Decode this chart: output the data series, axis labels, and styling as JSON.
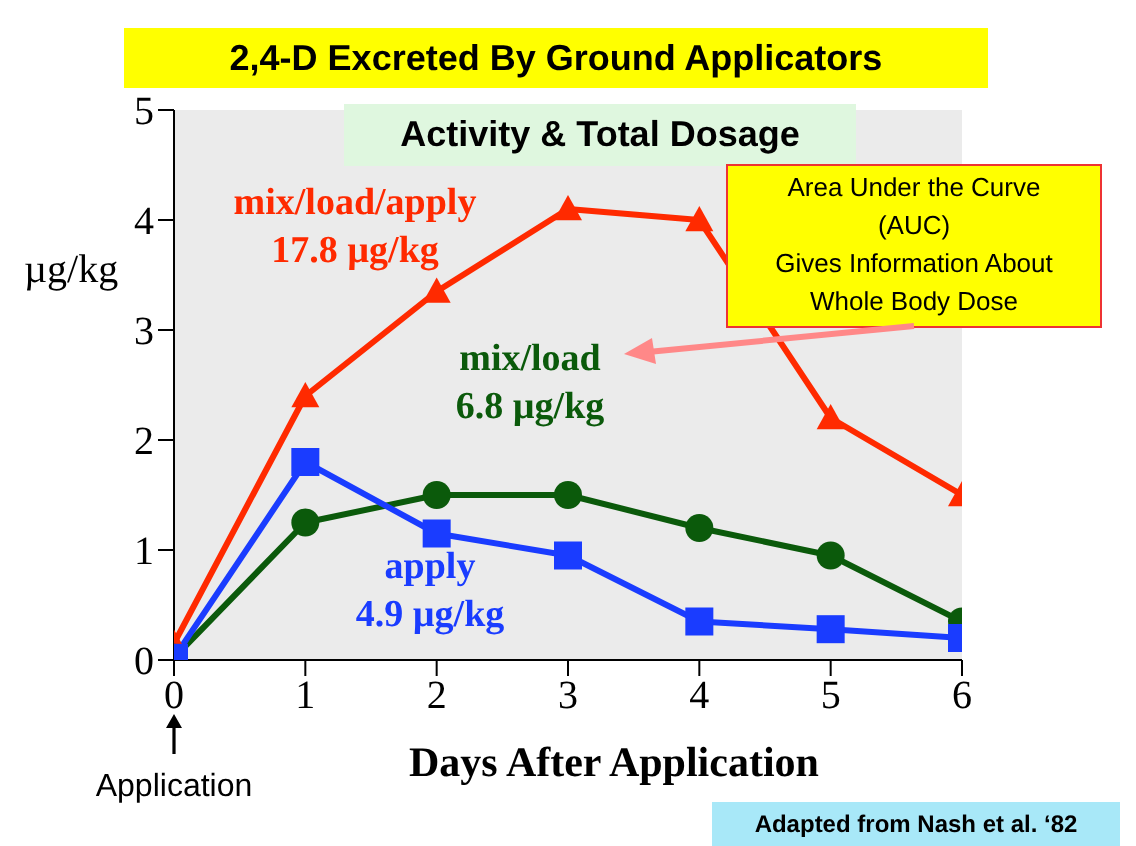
{
  "chart_data": {
    "type": "line",
    "title": "2,4-D Excreted By Ground Applicators",
    "subtitle": "Activity & Total Dosage",
    "xlabel": "Days After Application",
    "ylabel": "µg/kg",
    "x": [
      0,
      1,
      2,
      3,
      4,
      5,
      6
    ],
    "series": [
      {
        "name": "mix/load/apply",
        "color": "#ff2a00",
        "marker": "triangle",
        "values": [
          0.15,
          2.4,
          3.35,
          4.1,
          4.0,
          2.2,
          1.5
        ]
      },
      {
        "name": "mix/load",
        "color": "#0b5a0b",
        "marker": "circle",
        "values": [
          0.02,
          1.25,
          1.5,
          1.5,
          1.2,
          0.95,
          0.35
        ]
      },
      {
        "name": "apply",
        "color": "#1a3cff",
        "marker": "square",
        "values": [
          0.02,
          1.8,
          1.15,
          0.95,
          0.35,
          0.28,
          0.2
        ]
      }
    ],
    "annotations": [
      "17.8 µg/kg",
      "6.8 µg/kg",
      "4.9 µg/kg",
      "Area Under the Curve\n(AUC)\nGives Information About\nWhole Body Dose",
      "Application",
      "Adapted from Nash et al. ‘82"
    ],
    "xlim": [
      0,
      6
    ],
    "ylim": [
      0,
      5
    ],
    "xticks": [
      0,
      1,
      2,
      3,
      4,
      5,
      6
    ],
    "yticks": [
      0,
      1,
      2,
      3,
      4,
      5
    ],
    "grid": false,
    "legend": false
  }
}
